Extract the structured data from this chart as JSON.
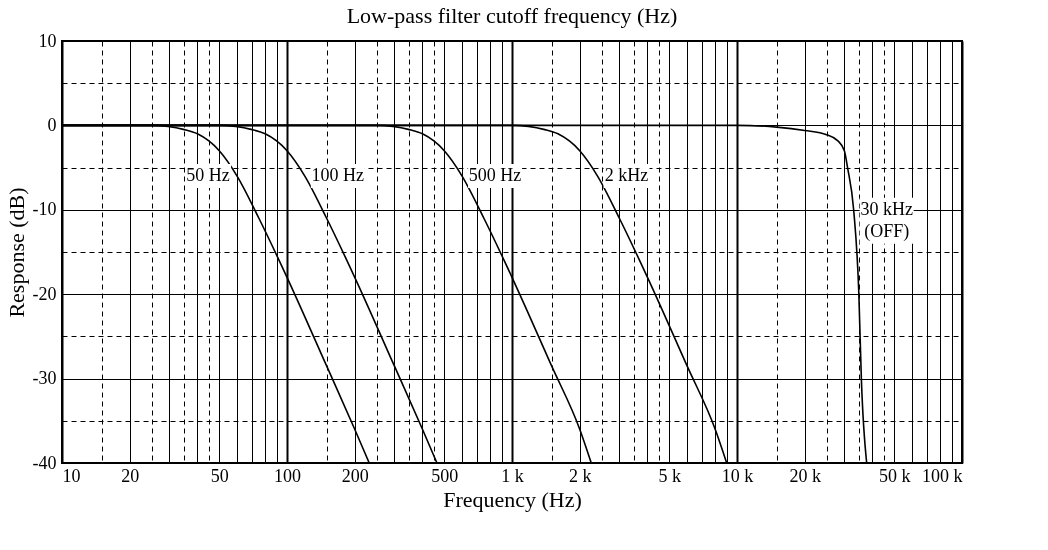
{
  "chart_data": {
    "type": "line",
    "title": "Low-pass filter cutoff frequency (Hz)",
    "xlabel": "Frequency (Hz)",
    "ylabel": "Response (dB)",
    "log": "x",
    "grid": true,
    "xlim": [
      10,
      100000
    ],
    "ylim": [
      -40,
      10
    ],
    "xticks": [
      10,
      {
        "value": 15,
        "label": null
      },
      20,
      {
        "value": 25,
        "label": null
      },
      {
        "value": 30,
        "label": null
      },
      {
        "value": 35,
        "label": null
      },
      {
        "value": 40,
        "label": null
      },
      {
        "value": 45,
        "label": null
      },
      50,
      {
        "value": 60,
        "label": null
      },
      {
        "value": 70,
        "label": null
      },
      {
        "value": 80,
        "label": null
      },
      {
        "value": 90,
        "label": null
      },
      100,
      {
        "value": 150,
        "label": null
      },
      200,
      {
        "value": 250,
        "label": null
      },
      {
        "value": 300,
        "label": null
      },
      {
        "value": 350,
        "label": null
      },
      {
        "value": 400,
        "label": null
      },
      {
        "value": 450,
        "label": null
      },
      500,
      {
        "value": 600,
        "label": null
      },
      {
        "value": 700,
        "label": null
      },
      {
        "value": 800,
        "label": null
      },
      {
        "value": 900,
        "label": null
      },
      {
        "value": 1000,
        "label": "1 k"
      },
      {
        "value": 1500,
        "label": null
      },
      {
        "value": 2000,
        "label": "2 k"
      },
      {
        "value": 2500,
        "label": null
      },
      {
        "value": 3000,
        "label": null
      },
      {
        "value": 3500,
        "label": null
      },
      {
        "value": 4000,
        "label": null
      },
      {
        "value": 4500,
        "label": null
      },
      {
        "value": 5000,
        "label": "5 k"
      },
      {
        "value": 6000,
        "label": null
      },
      {
        "value": 7000,
        "label": null
      },
      {
        "value": 8000,
        "label": null
      },
      {
        "value": 9000,
        "label": null
      },
      {
        "value": 10000,
        "label": "10 k"
      },
      {
        "value": 15000,
        "label": null
      },
      {
        "value": 20000,
        "label": "20 k"
      },
      {
        "value": 25000,
        "label": null
      },
      {
        "value": 30000,
        "label": null
      },
      {
        "value": 35000,
        "label": null
      },
      {
        "value": 40000,
        "label": null
      },
      {
        "value": 45000,
        "label": null
      },
      {
        "value": 50000,
        "label": "50 k"
      },
      {
        "value": 60000,
        "label": null
      },
      {
        "value": 70000,
        "label": null
      },
      {
        "value": 80000,
        "label": null
      },
      {
        "value": 90000,
        "label": null
      },
      {
        "value": 100000,
        "label": "100 k"
      }
    ],
    "yticks": [
      -40,
      {
        "value": -35,
        "label": null
      },
      -30,
      {
        "value": -25,
        "label": null
      },
      -20,
      {
        "value": -15,
        "label": null
      },
      -10,
      {
        "value": -5,
        "label": null
      },
      0,
      {
        "value": 5,
        "label": null
      },
      10
    ],
    "series": [
      {
        "name": "50 Hz",
        "color": "#000000",
        "x": [
          10,
          25,
          35,
          40,
          50,
          60,
          75,
          100,
          150,
          200,
          232
        ],
        "values": [
          0,
          0,
          -0.5,
          -1,
          -3,
          -6,
          -11,
          -18,
          -28.5,
          -36,
          -40
        ]
      },
      {
        "name": "100 Hz",
        "color": "#000000",
        "x": [
          10,
          50,
          70,
          80,
          100,
          120,
          150,
          200,
          300,
          400,
          464
        ],
        "values": [
          0,
          0,
          -0.5,
          -1,
          -3,
          -6,
          -11,
          -18,
          -28.5,
          -36,
          -40
        ]
      },
      {
        "name": "500 Hz",
        "color": "#000000",
        "x": [
          10,
          250,
          350,
          400,
          500,
          600,
          750,
          1000,
          1500,
          2000,
          2250
        ],
        "values": [
          0,
          0,
          -0.5,
          -1,
          -3,
          -6,
          -11,
          -18,
          -28.5,
          -36,
          -40
        ]
      },
      {
        "name": "2 kHz",
        "color": "#000000",
        "x": [
          10,
          1000,
          1400,
          1600,
          2000,
          2400,
          3000,
          4000,
          6000,
          8000,
          9000
        ],
        "values": [
          0,
          0,
          -0.5,
          -1,
          -3,
          -6,
          -11,
          -18,
          -28.5,
          -36,
          -40
        ]
      },
      {
        "name": "30 kHz\n(OFF)",
        "color": "#000000",
        "x": [
          10,
          10000,
          15000,
          20000,
          25000,
          28000,
          30000,
          31000,
          33000,
          34800,
          35700,
          37700
        ],
        "values": [
          0,
          0,
          -0.2,
          -0.6,
          -1.1,
          -1.8,
          -3,
          -5,
          -10,
          -20,
          -30,
          -40
        ]
      }
    ]
  }
}
